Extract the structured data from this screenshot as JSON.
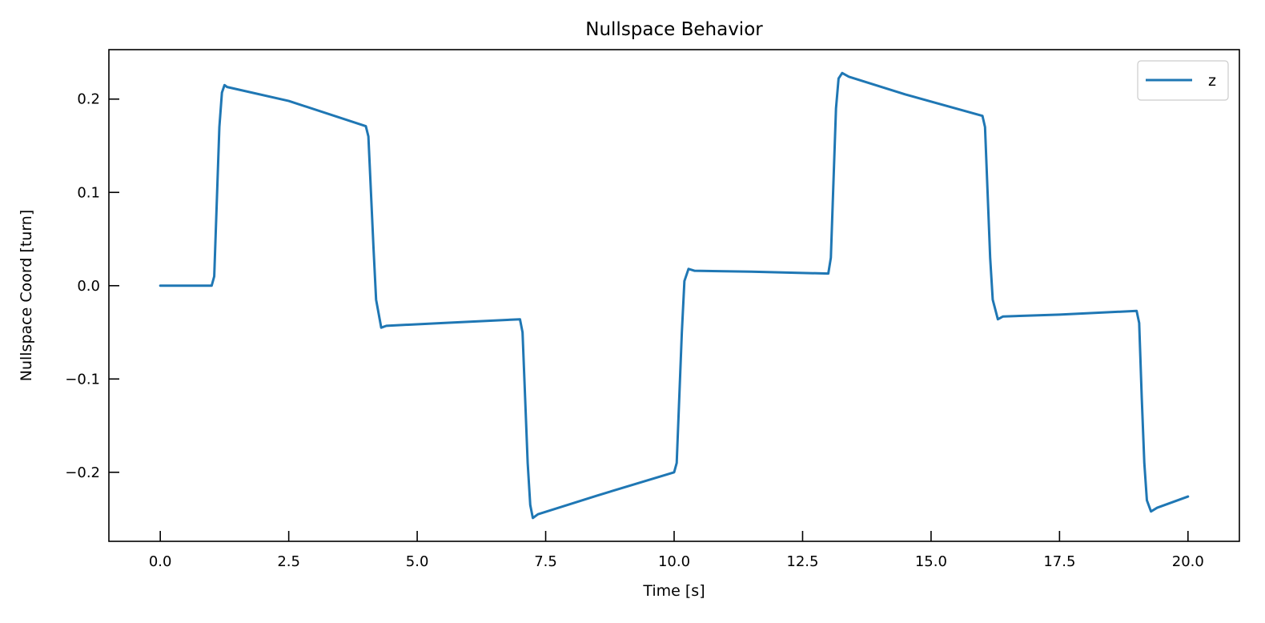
{
  "chart_data": {
    "type": "line",
    "title": "Nullspace Behavior",
    "xlabel": "Time [s]",
    "ylabel": "Nullspace Coord [turn]",
    "xlim": [
      -1.0,
      21.0
    ],
    "ylim": [
      -0.274,
      0.253
    ],
    "xticks": [
      0.0,
      2.5,
      5.0,
      7.5,
      10.0,
      12.5,
      15.0,
      17.5,
      20.0
    ],
    "xtick_labels": [
      "0.0",
      "2.5",
      "5.0",
      "7.5",
      "10.0",
      "12.5",
      "15.0",
      "17.5",
      "20.0"
    ],
    "yticks": [
      -0.2,
      -0.1,
      0.0,
      0.1,
      0.2
    ],
    "ytick_labels": [
      "−0.2",
      "−0.1",
      "0.0",
      "0.1",
      "0.2"
    ],
    "grid": false,
    "legend_position": "upper right",
    "series": [
      {
        "name": "z",
        "color": "#1f77b4",
        "points": [
          [
            0.0,
            0.0
          ],
          [
            1.0,
            0.0
          ],
          [
            1.05,
            0.01
          ],
          [
            1.1,
            0.09
          ],
          [
            1.15,
            0.17
          ],
          [
            1.2,
            0.207
          ],
          [
            1.25,
            0.215
          ],
          [
            1.3,
            0.213
          ],
          [
            2.5,
            0.198
          ],
          [
            4.0,
            0.171
          ],
          [
            4.05,
            0.16
          ],
          [
            4.1,
            0.1
          ],
          [
            4.15,
            0.04
          ],
          [
            4.2,
            -0.015
          ],
          [
            4.3,
            -0.045
          ],
          [
            4.4,
            -0.043
          ],
          [
            5.5,
            -0.04
          ],
          [
            7.0,
            -0.036
          ],
          [
            7.05,
            -0.05
          ],
          [
            7.1,
            -0.12
          ],
          [
            7.15,
            -0.19
          ],
          [
            7.2,
            -0.235
          ],
          [
            7.25,
            -0.249
          ],
          [
            7.35,
            -0.245
          ],
          [
            8.5,
            -0.225
          ],
          [
            10.0,
            -0.2
          ],
          [
            10.05,
            -0.19
          ],
          [
            10.1,
            -0.12
          ],
          [
            10.15,
            -0.05
          ],
          [
            10.2,
            0.005
          ],
          [
            10.28,
            0.018
          ],
          [
            10.4,
            0.016
          ],
          [
            11.5,
            0.015
          ],
          [
            13.0,
            0.013
          ],
          [
            13.05,
            0.03
          ],
          [
            13.1,
            0.11
          ],
          [
            13.15,
            0.19
          ],
          [
            13.2,
            0.222
          ],
          [
            13.27,
            0.228
          ],
          [
            13.4,
            0.224
          ],
          [
            14.5,
            0.205
          ],
          [
            16.0,
            0.182
          ],
          [
            16.05,
            0.17
          ],
          [
            16.1,
            0.1
          ],
          [
            16.15,
            0.03
          ],
          [
            16.2,
            -0.015
          ],
          [
            16.3,
            -0.036
          ],
          [
            16.4,
            -0.033
          ],
          [
            17.5,
            -0.031
          ],
          [
            19.0,
            -0.027
          ],
          [
            19.05,
            -0.04
          ],
          [
            19.1,
            -0.12
          ],
          [
            19.15,
            -0.19
          ],
          [
            19.2,
            -0.23
          ],
          [
            19.28,
            -0.242
          ],
          [
            19.4,
            -0.238
          ],
          [
            20.0,
            -0.226
          ]
        ]
      }
    ]
  }
}
